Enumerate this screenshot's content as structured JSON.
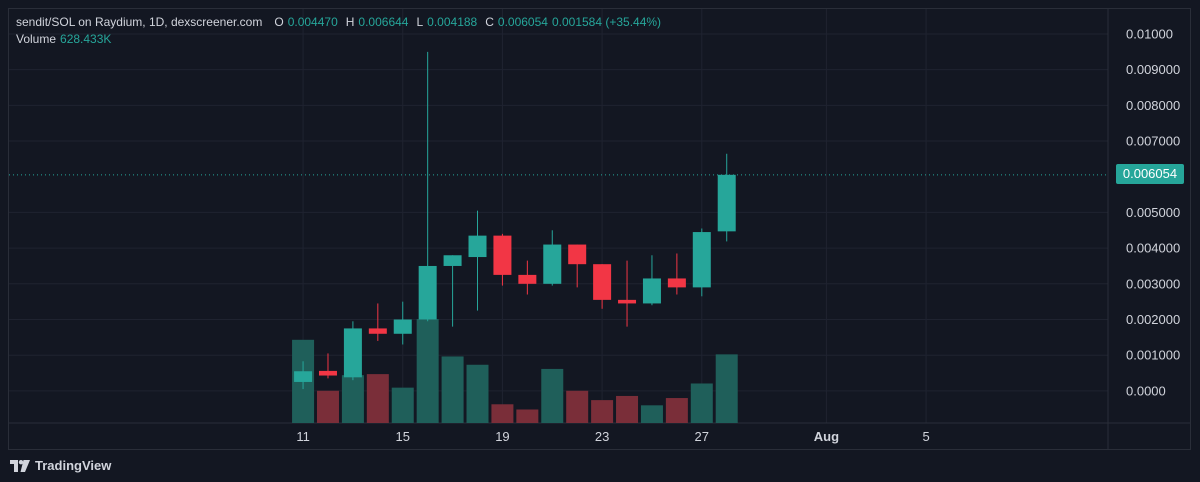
{
  "legend": {
    "symbol": "sendit/SOL on Raydium, 1D, dexscreener.com",
    "o_key": "O",
    "o_val": "0.004470",
    "h_key": "H",
    "h_val": "0.006644",
    "l_key": "L",
    "l_val": "0.004188",
    "c_key": "C",
    "c_val": "0.006054",
    "change": "0.001584 (+35.44%)",
    "volume_key": "Volume",
    "volume_val": "628.433K"
  },
  "last_price_label": "0.006054",
  "brand": {
    "name": "TradingView"
  },
  "colors": {
    "bg": "#131722",
    "up": "#26a69a",
    "down": "#f23645",
    "vol_up": "#1f5f5a",
    "vol_down": "#7a2e39",
    "grid": "#1f2330"
  },
  "chart_data": {
    "type": "candlestick",
    "last_price": 0.006054,
    "y_ticks": [
      "0.01000",
      "0.009000",
      "0.008000",
      "0.007000",
      "0.005000",
      "0.004000",
      "0.003000",
      "0.002000",
      "0.001000",
      "0.0000"
    ],
    "y_tick_values": [
      0.01,
      0.009,
      0.008,
      0.007,
      0.005,
      0.004,
      0.003,
      0.002,
      0.001,
      0.0
    ],
    "ylim": [
      -0.0009,
      0.0107
    ],
    "x_ticks": [
      "11",
      "15",
      "19",
      "23",
      "27",
      "Aug",
      "5"
    ],
    "x_tick_days": [
      11,
      15,
      19,
      23,
      27,
      32,
      36
    ],
    "xlim_days": [
      -0.8,
      43.3
    ],
    "candles": [
      {
        "day": 11,
        "o": 0.00025,
        "h": 0.00083,
        "l": 5e-05,
        "c": 0.00055,
        "vol": 0.8
      },
      {
        "day": 12,
        "o": 0.00056,
        "h": 0.00105,
        "l": 0.00035,
        "c": 0.00043,
        "vol": 0.31
      },
      {
        "day": 13,
        "o": 0.00038,
        "h": 0.00195,
        "l": 0.0003,
        "c": 0.00175,
        "vol": 0.46
      },
      {
        "day": 14,
        "o": 0.00175,
        "h": 0.00245,
        "l": 0.0014,
        "c": 0.0016,
        "vol": 0.47
      },
      {
        "day": 15,
        "o": 0.0016,
        "h": 0.0025,
        "l": 0.0013,
        "c": 0.002,
        "vol": 0.34
      },
      {
        "day": 16,
        "o": 0.002,
        "h": 0.0095,
        "l": 0.00195,
        "c": 0.0035,
        "vol": 1.0
      },
      {
        "day": 17,
        "o": 0.0035,
        "h": 0.0038,
        "l": 0.0018,
        "c": 0.0038,
        "vol": 0.64
      },
      {
        "day": 18,
        "o": 0.00375,
        "h": 0.00505,
        "l": 0.00225,
        "c": 0.00435,
        "vol": 0.56
      },
      {
        "day": 19,
        "o": 0.00435,
        "h": 0.0044,
        "l": 0.00295,
        "c": 0.00325,
        "vol": 0.18
      },
      {
        "day": 20,
        "o": 0.00325,
        "h": 0.00365,
        "l": 0.0027,
        "c": 0.003,
        "vol": 0.13
      },
      {
        "day": 21,
        "o": 0.003,
        "h": 0.0045,
        "l": 0.00295,
        "c": 0.0041,
        "vol": 0.52
      },
      {
        "day": 22,
        "o": 0.0041,
        "h": 0.0041,
        "l": 0.0029,
        "c": 0.00355,
        "vol": 0.31
      },
      {
        "day": 23,
        "o": 0.00355,
        "h": 0.00355,
        "l": 0.0023,
        "c": 0.00255,
        "vol": 0.22
      },
      {
        "day": 24,
        "o": 0.00255,
        "h": 0.00365,
        "l": 0.0018,
        "c": 0.00245,
        "vol": 0.26
      },
      {
        "day": 25,
        "o": 0.00245,
        "h": 0.0038,
        "l": 0.0024,
        "c": 0.00315,
        "vol": 0.17
      },
      {
        "day": 26,
        "o": 0.00315,
        "h": 0.00385,
        "l": 0.0027,
        "c": 0.0029,
        "vol": 0.24
      },
      {
        "day": 27,
        "o": 0.0029,
        "h": 0.00455,
        "l": 0.00265,
        "c": 0.00445,
        "vol": 0.38
      },
      {
        "day": 28,
        "o": 0.00447,
        "h": 0.006644,
        "l": 0.004188,
        "c": 0.006054,
        "vol": 0.66
      }
    ],
    "volume_relative_note": "vol is relative bar height (1.0 = tallest)",
    "grid": true
  }
}
